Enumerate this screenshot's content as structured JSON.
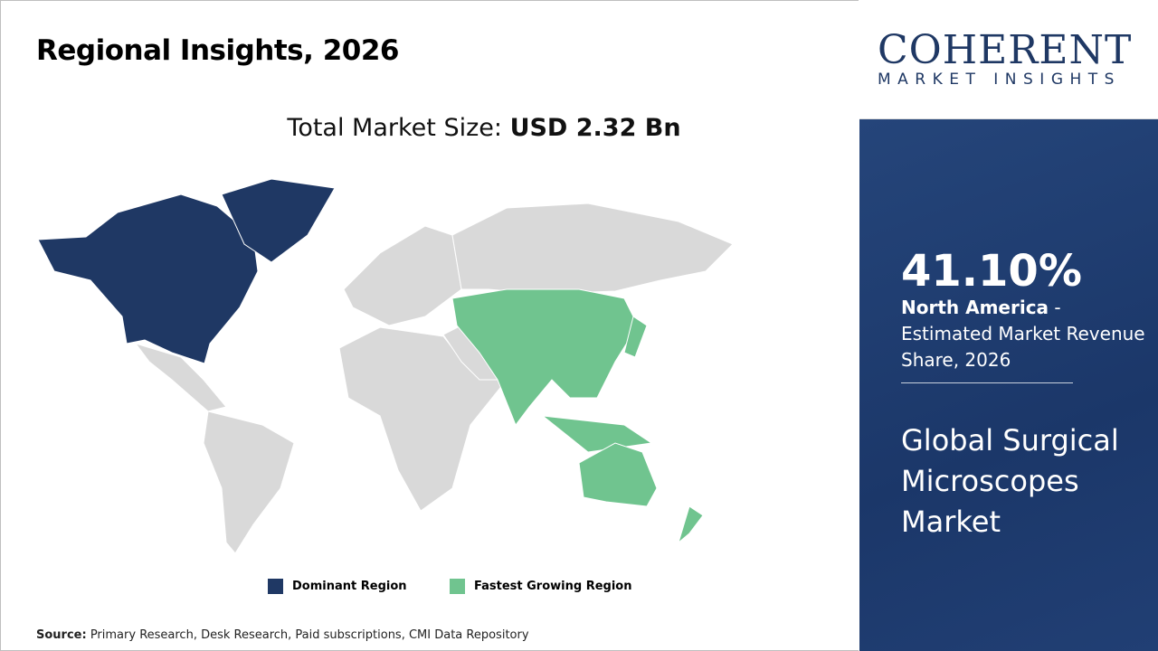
{
  "title": "Regional Insights, 2026",
  "total_label": "Total Market Size: ",
  "total_value": "USD 2.32 Bn",
  "legend": [
    {
      "label": "Dominant Region",
      "color": "#1f3864"
    },
    {
      "label": "Fastest Growing Region",
      "color": "#70c48f"
    }
  ],
  "map_colors": {
    "other": "#d9d9d9",
    "dominant": "#1f3864",
    "fastest": "#70c48f"
  },
  "source_label": "Source:",
  "source_text": " Primary Research, Desk Research, Paid subscriptions, CMI Data Repository",
  "logo": {
    "line1": "COHERENT",
    "line2": "MARKET INSIGHTS"
  },
  "panel": {
    "percent": "41.10%",
    "region": "North America",
    "desc": " - Estimated Market Revenue Share, 2026",
    "market": "Global Surgical Microscopes Market"
  }
}
